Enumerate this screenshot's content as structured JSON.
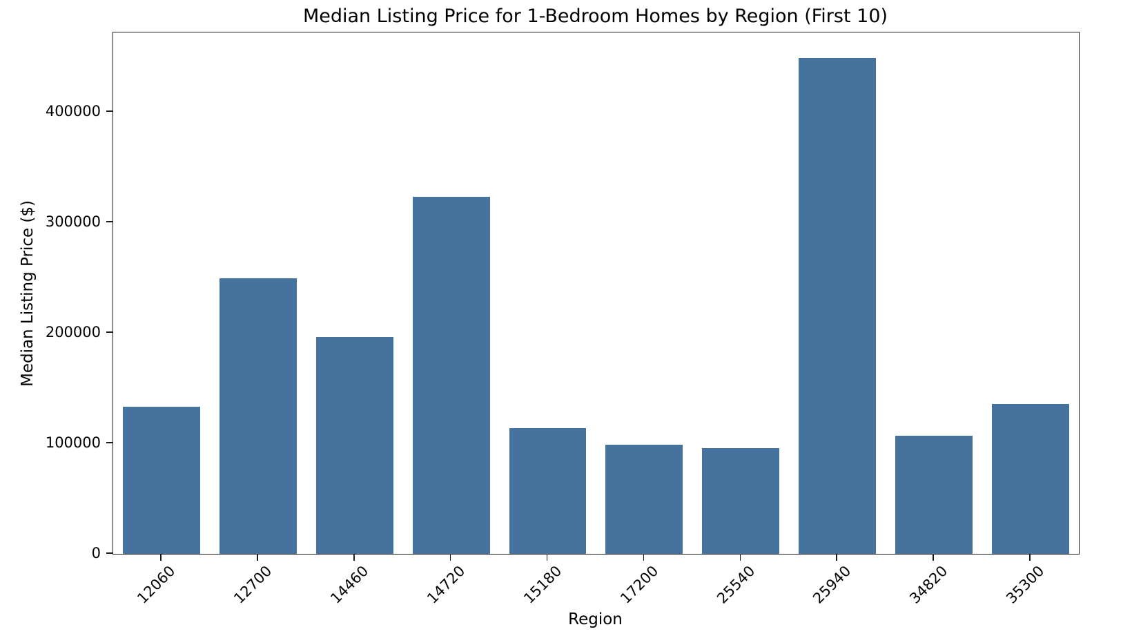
{
  "chart_data": {
    "type": "bar",
    "title": "Median Listing Price for 1-Bedroom Homes by Region (First 10)",
    "xlabel": "Region",
    "ylabel": "Median Listing Price ($)",
    "categories": [
      "12060",
      "12700",
      "14460",
      "14720",
      "15180",
      "17200",
      "25540",
      "25940",
      "34820",
      "35300"
    ],
    "values": [
      133000,
      249500,
      196000,
      323500,
      114000,
      99000,
      95500,
      449000,
      107000,
      135500
    ],
    "yticks": [
      0,
      100000,
      200000,
      300000,
      400000
    ],
    "ylim": [
      0,
      472000
    ],
    "x_tick_rotation": 45,
    "bar_color": "#46739E",
    "grid": false,
    "legend": null
  }
}
